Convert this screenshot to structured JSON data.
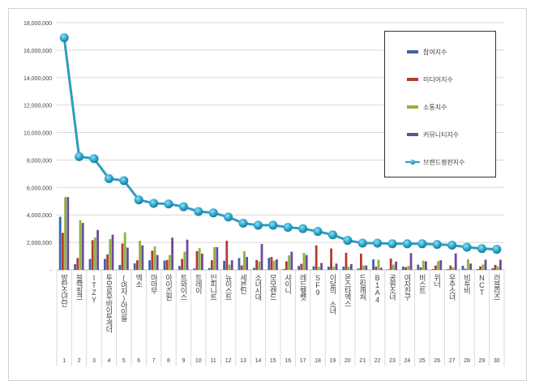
{
  "chart_data": {
    "type": "bar",
    "title": "",
    "xlabel": "",
    "ylabel": "",
    "ylim": [
      0,
      18000000
    ],
    "y_ticks": [
      "-",
      "2,000,000",
      "4,000,000",
      "6,000,000",
      "8,000,000",
      "10,000,000",
      "12,000,000",
      "14,000,000",
      "16,000,000",
      "18,000,000"
    ],
    "grid": true,
    "legend_placement": "top-right",
    "ranks": [
      "1",
      "2",
      "3",
      "4",
      "5",
      "6",
      "7",
      "8",
      "9",
      "10",
      "11",
      "12",
      "13",
      "14",
      "15",
      "16",
      "17",
      "18",
      "19",
      "20",
      "21",
      "22",
      "23",
      "24",
      "25",
      "26",
      "27",
      "28",
      "29",
      "30"
    ],
    "categories": [
      "방탄소년단",
      "블랙핑크",
      "ITZY",
      "투모로우바이투게더",
      "(여자)아이들",
      "엑소",
      "마마무",
      "아이즈원",
      "트와이스",
      "트레이",
      "인피니트",
      "뉴이스트",
      "세븐틴",
      "소녀시대",
      "모모랜드",
      "샤이니",
      "레드벨벳",
      "SF9",
      "이달의 소녀",
      "몬스타엑스",
      "드림캐쳐",
      "B1A4",
      "공원소녀",
      "여자친구",
      "비스트",
      "위너",
      "우주소녀",
      "비투비",
      "NCT",
      "러블리즈"
    ],
    "series": [
      {
        "name": "참여지수",
        "type": "bar",
        "color": "#3a66a8",
        "values": [
          3860000,
          420000,
          800000,
          800000,
          360000,
          480000,
          700000,
          680000,
          280000,
          100000,
          140000,
          660000,
          860000,
          140000,
          880000,
          60000,
          280000,
          260000,
          240000,
          240000,
          100000,
          760000,
          40000,
          240000,
          380000,
          60000,
          60000,
          300000,
          60000,
          120000
        ]
      },
      {
        "name": "미디어지수",
        "type": "bar",
        "color": "#b33a36",
        "values": [
          2700000,
          860000,
          2160000,
          1120000,
          1920000,
          700000,
          1400000,
          720000,
          800000,
          1360000,
          700000,
          2120000,
          320000,
          720000,
          940000,
          620000,
          440000,
          1780000,
          1560000,
          1240000,
          1180000,
          240000,
          820000,
          200000,
          180000,
          320000,
          320000,
          80000,
          260000,
          360000
        ]
      },
      {
        "name": "소통지수",
        "type": "bar",
        "color": "#8db240",
        "values": [
          5300000,
          3620000,
          2360000,
          2240000,
          2740000,
          2120000,
          1700000,
          1080000,
          1320000,
          1580000,
          1660000,
          380000,
          1360000,
          620000,
          660000,
          1060000,
          1240000,
          220000,
          240000,
          240000,
          320000,
          740000,
          380000,
          280000,
          680000,
          640000,
          180000,
          760000,
          380000,
          260000
        ]
      },
      {
        "name": "커뮤니티지수",
        "type": "bar",
        "color": "#6c4a9a",
        "values": [
          5300000,
          3420000,
          2900000,
          2560000,
          1620000,
          1780000,
          1080000,
          2340000,
          2200000,
          1180000,
          1660000,
          700000,
          940000,
          1880000,
          760000,
          1320000,
          1080000,
          500000,
          460000,
          420000,
          320000,
          160000,
          600000,
          1220000,
          620000,
          700000,
          1200000,
          460000,
          740000,
          740000
        ]
      },
      {
        "name": "브랜드평판지수",
        "type": "line",
        "color": "#2e9cbf",
        "values": [
          16900000,
          8250000,
          8100000,
          6650000,
          6500000,
          5100000,
          4850000,
          4800000,
          4600000,
          4250000,
          4150000,
          3850000,
          3400000,
          3250000,
          3250000,
          3100000,
          3000000,
          2800000,
          2550000,
          2150000,
          1950000,
          1950000,
          1900000,
          1900000,
          1900000,
          1850000,
          1800000,
          1650000,
          1550000,
          1500000
        ]
      }
    ]
  }
}
